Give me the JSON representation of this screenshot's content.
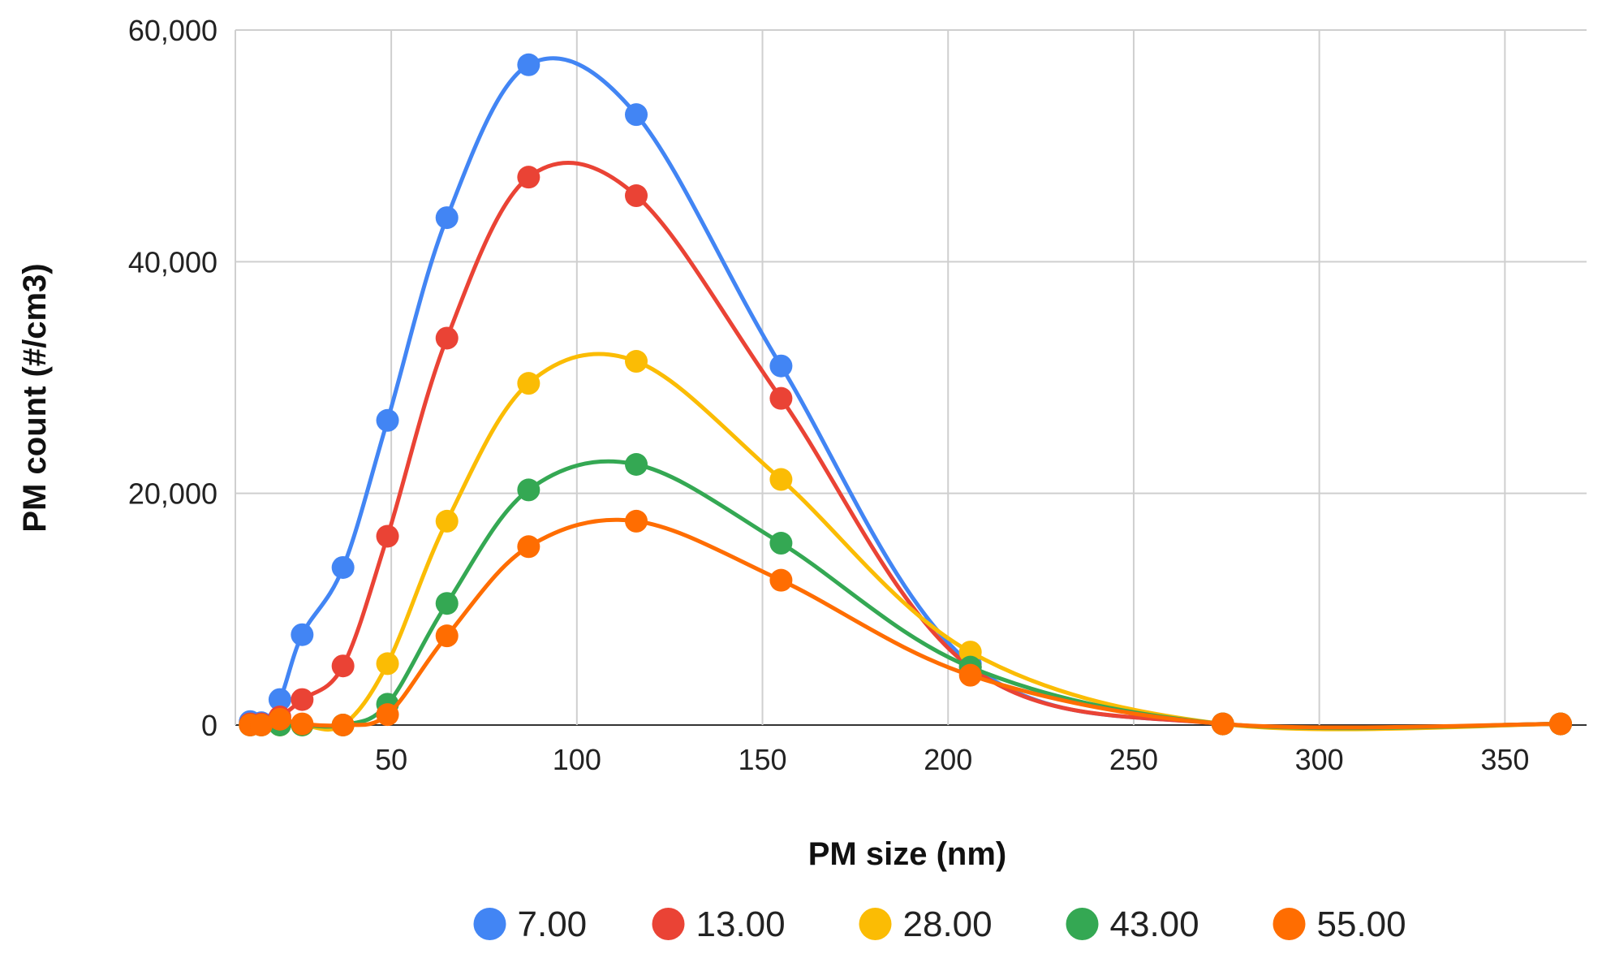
{
  "chart_data": {
    "type": "line",
    "title": "",
    "xlabel": "PM size (nm)",
    "ylabel": "PM count (#/cm3)",
    "xlim": [
      8,
      372
    ],
    "ylim": [
      0,
      60000
    ],
    "x_ticks": [
      50,
      100,
      150,
      200,
      250,
      300,
      350
    ],
    "y_ticks": [
      0,
      20000,
      40000,
      60000
    ],
    "x_tick_labels": [
      "50",
      "100",
      "150",
      "200",
      "250",
      "300",
      "350"
    ],
    "y_tick_labels": [
      "0",
      "20,000",
      "40,000",
      "60,000"
    ],
    "grid": true,
    "smooth": true,
    "legend_position": "bottom",
    "x": [
      12,
      15,
      20,
      26,
      37,
      49,
      65,
      87,
      116,
      155,
      206,
      274,
      365
    ],
    "series": [
      {
        "name": "7.00",
        "color": "#4285F4",
        "values": [
          300,
          200,
          2200,
          7800,
          13600,
          26300,
          43800,
          57000,
          52700,
          31000,
          5300,
          100,
          100
        ]
      },
      {
        "name": "13.00",
        "color": "#EA4335",
        "values": [
          100,
          100,
          700,
          2200,
          5100,
          16300,
          33400,
          47300,
          45700,
          28200,
          5000,
          100,
          100
        ]
      },
      {
        "name": "28.00",
        "color": "#FBBC04",
        "values": [
          0,
          0,
          0,
          0,
          0,
          5300,
          17600,
          29500,
          31400,
          21200,
          6300,
          100,
          100
        ]
      },
      {
        "name": "43.00",
        "color": "#34A853",
        "values": [
          0,
          0,
          0,
          0,
          0,
          1800,
          10500,
          20300,
          22500,
          15700,
          5000,
          100,
          100
        ]
      },
      {
        "name": "55.00",
        "color": "#FF6D01",
        "values": [
          0,
          0,
          500,
          100,
          0,
          900,
          7700,
          15400,
          17600,
          12500,
          4300,
          100,
          100
        ]
      }
    ]
  }
}
